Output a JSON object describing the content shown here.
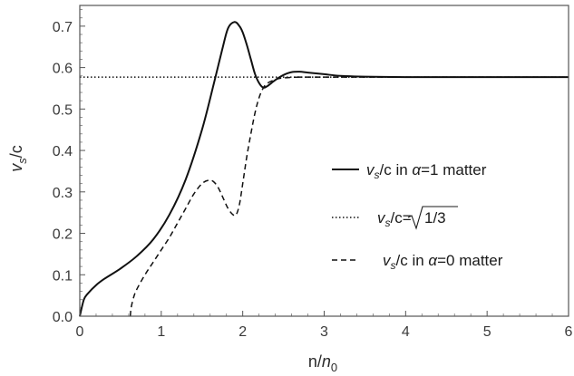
{
  "chart_data": {
    "type": "line",
    "xlabel": "n/n_0",
    "ylabel": "v_s/c",
    "xlim": [
      0,
      6
    ],
    "ylim": [
      0,
      0.75
    ],
    "xticks": [
      0,
      1,
      2,
      3,
      4,
      5,
      6
    ],
    "yticks": [
      0.0,
      0.1,
      0.2,
      0.3,
      0.4,
      0.5,
      0.6,
      0.7
    ],
    "xtick_labels": [
      "0",
      "1",
      "2",
      "3",
      "4",
      "5",
      "6"
    ],
    "ytick_labels": [
      "0.0",
      "0.1",
      "0.2",
      "0.3",
      "0.4",
      "0.5",
      "0.6",
      "0.7"
    ],
    "grid": false,
    "legend_position": "right-center",
    "series": [
      {
        "name": "v_s/c in α=1 matter",
        "style": "solid",
        "x": [
          0.0,
          0.05,
          0.1,
          0.2,
          0.3,
          0.5,
          0.7,
          0.9,
          1.1,
          1.3,
          1.5,
          1.65,
          1.75,
          1.82,
          1.9,
          1.96,
          2.0,
          2.05,
          2.1,
          2.15,
          2.2,
          2.25,
          2.3,
          2.4,
          2.5,
          2.6,
          2.7,
          2.8,
          3.0,
          3.2,
          3.5,
          4.0,
          5.0,
          6.0
        ],
        "y": [
          0.0,
          0.04,
          0.055,
          0.075,
          0.09,
          0.115,
          0.145,
          0.185,
          0.245,
          0.33,
          0.45,
          0.565,
          0.645,
          0.695,
          0.71,
          0.7,
          0.685,
          0.655,
          0.62,
          0.585,
          0.563,
          0.552,
          0.555,
          0.57,
          0.582,
          0.589,
          0.59,
          0.588,
          0.584,
          0.58,
          0.578,
          0.577,
          0.577,
          0.577
        ]
      },
      {
        "name": "v_s/c=√1/3",
        "style": "dotted",
        "x": [
          0.0,
          6.0
        ],
        "y": [
          0.577,
          0.577
        ]
      },
      {
        "name": "v_s/c in α=0 matter",
        "style": "dashed",
        "x": [
          0.62,
          0.63,
          0.66,
          0.7,
          0.8,
          0.9,
          1.0,
          1.1,
          1.2,
          1.3,
          1.4,
          1.5,
          1.58,
          1.64,
          1.7,
          1.76,
          1.82,
          1.88,
          1.92,
          1.96,
          2.0,
          2.05,
          2.1,
          2.15,
          2.2,
          2.25,
          2.3,
          2.4,
          2.5,
          2.7,
          3.0,
          6.0
        ],
        "y": [
          0.0,
          0.02,
          0.045,
          0.065,
          0.1,
          0.13,
          0.16,
          0.19,
          0.225,
          0.26,
          0.295,
          0.32,
          0.328,
          0.325,
          0.31,
          0.285,
          0.26,
          0.245,
          0.245,
          0.27,
          0.32,
          0.385,
          0.44,
          0.49,
          0.527,
          0.55,
          0.562,
          0.571,
          0.575,
          0.577,
          0.577,
          0.577
        ]
      }
    ]
  }
}
